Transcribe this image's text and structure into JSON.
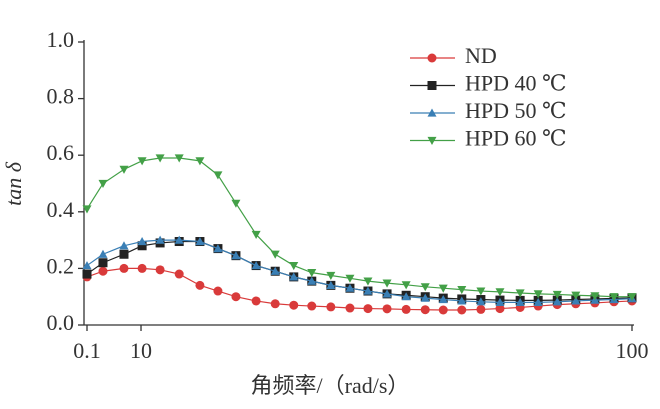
{
  "chart_data": {
    "type": "line",
    "x_label": "角频率/（rad/s）",
    "y_label": "tan δ",
    "x": [
      0.1,
      3.03,
      6.88,
      10.2,
      13.5,
      17.0,
      20.8,
      24.1,
      27.4,
      31.1,
      34.6,
      38.0,
      41.3,
      44.8,
      48.3,
      51.6,
      55.1,
      58.6,
      62.1,
      65.4,
      68.8,
      72.3,
      75.8,
      79.5,
      82.8,
      86.3,
      89.7,
      93.2,
      96.7,
      100
    ],
    "series": [
      {
        "name": "ND",
        "color": "#d93a3a",
        "marker": "circle",
        "values": [
          0.17,
          0.19,
          0.2,
          0.2,
          0.195,
          0.18,
          0.14,
          0.12,
          0.1,
          0.085,
          0.075,
          0.07,
          0.067,
          0.064,
          0.06,
          0.058,
          0.057,
          0.055,
          0.054,
          0.053,
          0.053,
          0.055,
          0.058,
          0.062,
          0.067,
          0.072,
          0.075,
          0.078,
          0.082,
          0.085
        ]
      },
      {
        "name": "HPD 40 ℃",
        "color": "#222222",
        "marker": "square",
        "values": [
          0.18,
          0.22,
          0.25,
          0.28,
          0.29,
          0.295,
          0.295,
          0.27,
          0.245,
          0.21,
          0.19,
          0.17,
          0.155,
          0.14,
          0.13,
          0.12,
          0.11,
          0.105,
          0.1,
          0.095,
          0.092,
          0.09,
          0.088,
          0.087,
          0.087,
          0.088,
          0.09,
          0.092,
          0.094,
          0.096
        ]
      },
      {
        "name": "HPD 50 ℃",
        "color": "#3a7fb5",
        "marker": "triangle-up",
        "values": [
          0.21,
          0.25,
          0.28,
          0.295,
          0.3,
          0.3,
          0.295,
          0.27,
          0.245,
          0.21,
          0.19,
          0.17,
          0.155,
          0.14,
          0.13,
          0.12,
          0.11,
          0.1,
          0.095,
          0.09,
          0.085,
          0.082,
          0.08,
          0.08,
          0.08,
          0.082,
          0.085,
          0.088,
          0.09,
          0.093
        ]
      },
      {
        "name": "HPD 60 ℃",
        "color": "#43a047",
        "marker": "triangle-down",
        "values": [
          0.41,
          0.5,
          0.55,
          0.58,
          0.59,
          0.59,
          0.58,
          0.53,
          0.43,
          0.32,
          0.25,
          0.21,
          0.185,
          0.175,
          0.165,
          0.155,
          0.148,
          0.142,
          0.135,
          0.13,
          0.125,
          0.12,
          0.117,
          0.113,
          0.11,
          0.108,
          0.105,
          0.103,
          0.1,
          0.1
        ]
      }
    ],
    "xlim": [
      0.1,
      100
    ],
    "xticks": [
      0.1,
      10,
      100
    ],
    "ylim": [
      0,
      1.0
    ],
    "yticks": [
      {
        "value": 0,
        "label": "0.0"
      },
      {
        "value": 0.2,
        "label": "0.2"
      },
      {
        "value": 0.4,
        "label": "0.4"
      },
      {
        "value": 0.6,
        "label": "0.6"
      },
      {
        "value": 0.8,
        "label": "0.8"
      },
      {
        "value": 1.0,
        "label": "1.0"
      }
    ],
    "grid": false,
    "legend": "upper right"
  }
}
